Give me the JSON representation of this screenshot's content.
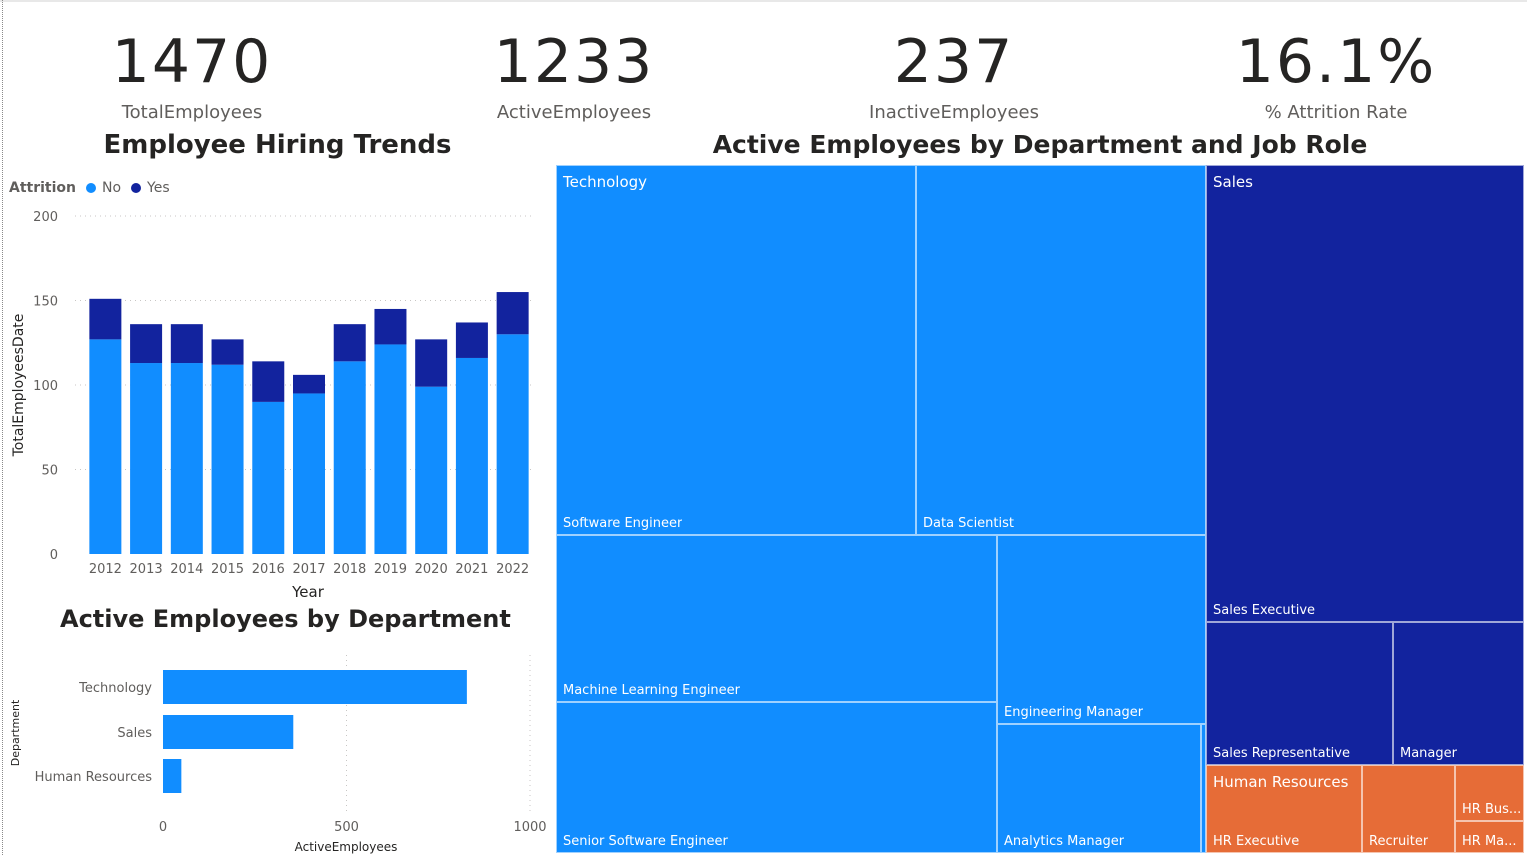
{
  "kpis": [
    {
      "value": "1470",
      "label": "TotalEmployees"
    },
    {
      "value": "1233",
      "label": "ActiveEmployees"
    },
    {
      "value": "237",
      "label": "InactiveEmployees"
    },
    {
      "value": "16.1%",
      "label": "% Attrition Rate"
    }
  ],
  "colors": {
    "no": "#118dff",
    "yes": "#12239e",
    "hr": "#e66c37"
  },
  "chart_data": [
    {
      "type": "bar",
      "stacked": true,
      "title": "Employee Hiring Trends",
      "legend_title": "Attrition",
      "legend_position": "top-left",
      "xlabel": "Year",
      "ylabel": "TotalEmployeesDate",
      "ylim": [
        0,
        200
      ],
      "yticks": [
        0,
        50,
        100,
        150,
        200
      ],
      "categories": [
        "2012",
        "2013",
        "2014",
        "2015",
        "2016",
        "2017",
        "2018",
        "2019",
        "2020",
        "2021",
        "2022"
      ],
      "series": [
        {
          "name": "No",
          "values": [
            127,
            113,
            113,
            112,
            90,
            95,
            114,
            124,
            99,
            116,
            130
          ]
        },
        {
          "name": "Yes",
          "values": [
            24,
            23,
            23,
            15,
            24,
            11,
            22,
            21,
            28,
            21,
            25
          ]
        }
      ],
      "grid": true
    },
    {
      "type": "bar",
      "orientation": "horizontal",
      "title": "Active Employees by Department",
      "xlabel": "ActiveEmployees",
      "ylabel": "Department",
      "xlim": [
        0,
        1000
      ],
      "xticks": [
        0,
        500,
        1000
      ],
      "categories": [
        "Technology",
        "Sales",
        "Human Resources"
      ],
      "values": [
        828,
        355,
        50
      ],
      "grid": true
    },
    {
      "type": "treemap",
      "title": "Active Employees by Department and Job Role",
      "groups": [
        {
          "name": "Technology",
          "items": [
            {
              "name": "Software Engineer"
            },
            {
              "name": "Data Scientist"
            },
            {
              "name": "Machine Learning Engineer"
            },
            {
              "name": "Senior Software Engineer"
            },
            {
              "name": "Engineering Manager"
            },
            {
              "name": "Analytics Manager"
            }
          ]
        },
        {
          "name": "Sales",
          "items": [
            {
              "name": "Sales Executive"
            },
            {
              "name": "Sales Representative"
            },
            {
              "name": "Manager"
            }
          ]
        },
        {
          "name": "Human Resources",
          "items": [
            {
              "name": "HR Executive"
            },
            {
              "name": "Recruiter"
            },
            {
              "name": "HR Bus..."
            },
            {
              "name": "HR Ma..."
            }
          ]
        }
      ]
    }
  ]
}
